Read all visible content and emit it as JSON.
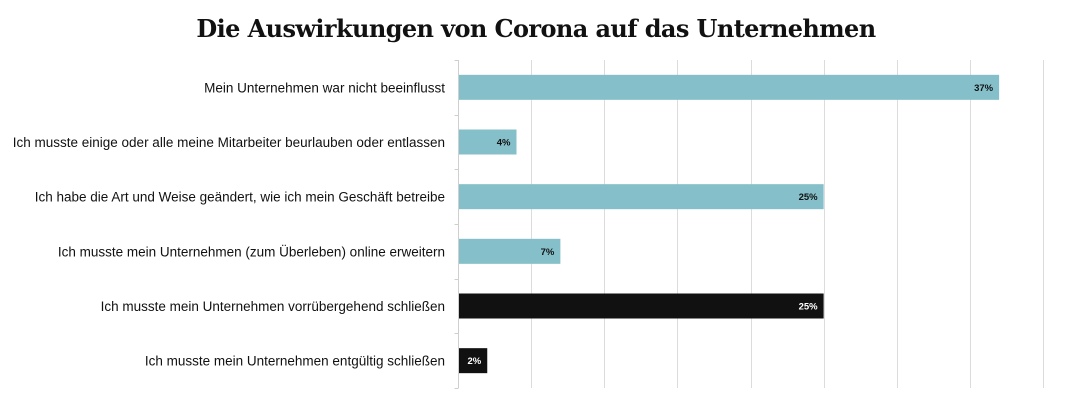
{
  "chart_data": {
    "type": "bar",
    "orientation": "horizontal",
    "title": "Die Auswirkungen von Corona auf das Unternehmen",
    "xlabel": "",
    "ylabel": "",
    "xlim": [
      0,
      40
    ],
    "grid_step": 5,
    "grid": true,
    "legend": "none",
    "value_suffix": "%",
    "categories": [
      "Mein Unternehmen war nicht beeinflusst",
      "Ich musste einige oder alle meine Mitarbeiter beurlauben oder entlassen",
      "Ich habe die Art und Weise geändert, wie ich mein Geschäft betreibe",
      "Ich musste mein Unternehmen (zum Überleben) online erweitern",
      "Ich musste mein Unternehmen vorrübergehend schließen",
      "Ich musste mein Unternehmen entgültig schließen"
    ],
    "values": [
      37,
      4,
      25,
      7,
      25,
      2
    ],
    "value_labels": [
      "37%",
      "4%",
      "25%",
      "7%",
      "25%",
      "2%"
    ],
    "bar_colors": [
      "#84bfca",
      "#84bfca",
      "#84bfca",
      "#84bfca",
      "#111111",
      "#111111"
    ],
    "label_colors": [
      "#111111",
      "#111111",
      "#111111",
      "#111111",
      "#ffffff",
      "#ffffff"
    ]
  }
}
